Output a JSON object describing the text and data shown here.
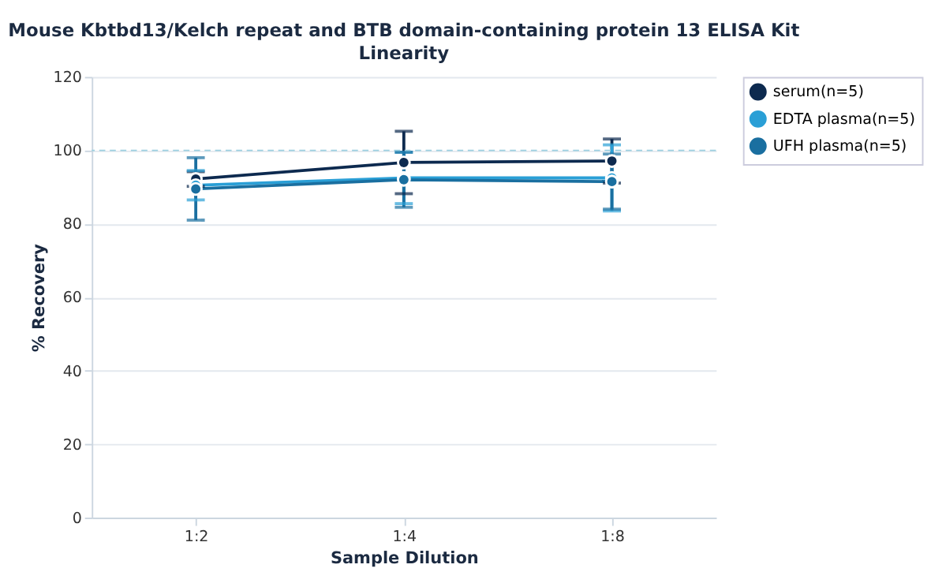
{
  "chart_data": {
    "type": "line",
    "title": "Mouse Kbtbd13/Kelch repeat and BTB domain-containing protein 13 ELISA Kit",
    "subtitle": "Linearity",
    "xlabel": "Sample Dilution",
    "ylabel": "% Recovery",
    "categories": [
      "1:2",
      "1:4",
      "1:8"
    ],
    "series": [
      {
        "name": "serum(n=5)",
        "color": "#0d2a4f",
        "values": [
          92.2,
          96.7,
          97.1
        ],
        "errors": [
          2,
          8.5,
          6
        ]
      },
      {
        "name": "EDTA plasma(n=5)",
        "color": "#2a9fd6",
        "values": [
          90.5,
          92.5,
          92.5
        ],
        "errors": [
          4,
          7,
          9
        ]
      },
      {
        "name": "UFH plasma(n=5)",
        "color": "#1a6fa0",
        "values": [
          89.5,
          92,
          91.5
        ],
        "errors": [
          8.5,
          7.5,
          7.5
        ]
      }
    ],
    "ylim": [
      0,
      120
    ],
    "yticks": [
      0,
      20,
      40,
      60,
      80,
      100,
      120
    ],
    "ref_lines": [
      {
        "axis": "y",
        "value": 100,
        "color": "#9ccfe0",
        "line_style": "dashed"
      }
    ],
    "grid": "y",
    "legend": "top right",
    "marker": "circle",
    "line_style": "solid"
  }
}
